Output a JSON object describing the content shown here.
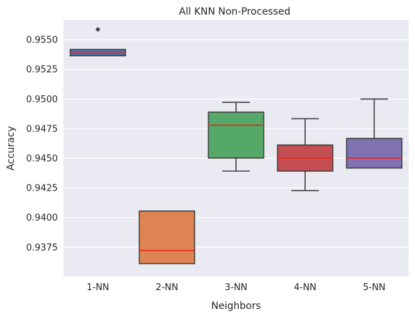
{
  "chart_data": {
    "type": "box",
    "title": "All KNN Non-Processed",
    "xlabel": "Neighbors",
    "ylabel": "Accuracy",
    "ylim": [
      0.93505,
      0.95665
    ],
    "yticks": [
      0.9375,
      0.94,
      0.9425,
      0.945,
      0.9475,
      0.95,
      0.9525,
      0.955
    ],
    "ytick_labels": [
      "0.9375",
      "0.9400",
      "0.9425",
      "0.9450",
      "0.9475",
      "0.9500",
      "0.9525",
      "0.9550"
    ],
    "grid": true,
    "categories": [
      "1-NN",
      "2-NN",
      "3-NN",
      "4-NN",
      "5-NN"
    ],
    "boxes": [
      {
        "category": "1-NN",
        "whisker_low": 0.95365,
        "q1": 0.95365,
        "median": 0.95388,
        "q3": 0.95418,
        "whisker_high": 0.95418,
        "outliers": [
          0.95587
        ],
        "color": "#4c72b0"
      },
      {
        "category": "2-NN",
        "whisker_low": 0.93612,
        "q1": 0.93612,
        "median": 0.93721,
        "q3": 0.94055,
        "whisker_high": 0.94055,
        "outliers": [],
        "color": "#dd8452"
      },
      {
        "category": "3-NN",
        "whisker_low": 0.94392,
        "q1": 0.94502,
        "median": 0.94779,
        "q3": 0.94889,
        "whisker_high": 0.94972,
        "outliers": [],
        "color": "#55a868"
      },
      {
        "category": "4-NN",
        "whisker_low": 0.94228,
        "q1": 0.94392,
        "median": 0.94502,
        "q3": 0.94612,
        "whisker_high": 0.94834,
        "outliers": [],
        "color": "#c44e52"
      },
      {
        "category": "5-NN",
        "whisker_low": 0.94418,
        "q1": 0.94418,
        "median": 0.94502,
        "q3": 0.94667,
        "whisker_high": 0.95,
        "outliers": [],
        "color": "#8172b3"
      }
    ],
    "median_color": "#e8281f"
  }
}
